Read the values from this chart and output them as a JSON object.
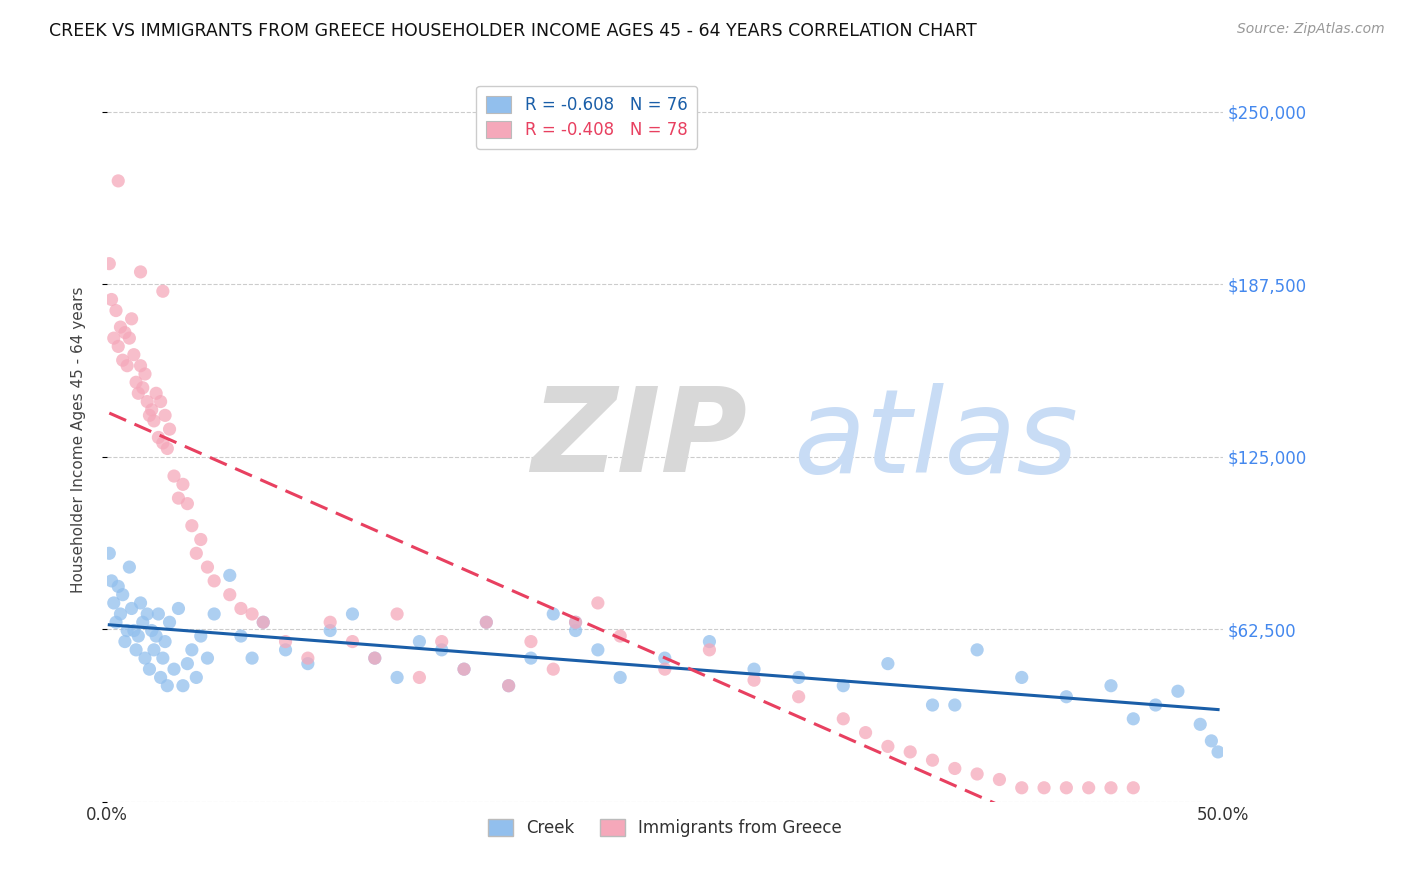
{
  "title": "CREEK VS IMMIGRANTS FROM GREECE HOUSEHOLDER INCOME AGES 45 - 64 YEARS CORRELATION CHART",
  "source": "Source: ZipAtlas.com",
  "ylabel": "Householder Income Ages 45 - 64 years",
  "xlim": [
    0.0,
    0.5
  ],
  "ylim": [
    0,
    262500
  ],
  "yticks": [
    0,
    62500,
    125000,
    187500,
    250000
  ],
  "ytick_labels": [
    "",
    "$62,500",
    "$125,000",
    "$187,500",
    "$250,000"
  ],
  "xticks": [
    0.0,
    0.05,
    0.1,
    0.15,
    0.2,
    0.25,
    0.3,
    0.35,
    0.4,
    0.45,
    0.5
  ],
  "legend_creek": "Creek",
  "legend_greece": "Immigrants from Greece",
  "creek_R": "-0.608",
  "creek_N": "76",
  "greece_R": "-0.408",
  "greece_N": "78",
  "creek_color": "#92BFED",
  "greece_color": "#F5A8BA",
  "creek_line_color": "#1A5EA8",
  "greece_line_color": "#E84060",
  "watermark_zip": "ZIP",
  "watermark_atlas": "atlas",
  "background_color": "#ffffff",
  "grid_color": "#cccccc",
  "creek_x": [
    0.001,
    0.002,
    0.003,
    0.004,
    0.005,
    0.006,
    0.007,
    0.008,
    0.009,
    0.01,
    0.011,
    0.012,
    0.013,
    0.014,
    0.015,
    0.016,
    0.017,
    0.018,
    0.019,
    0.02,
    0.021,
    0.022,
    0.023,
    0.024,
    0.025,
    0.026,
    0.027,
    0.028,
    0.03,
    0.032,
    0.034,
    0.036,
    0.038,
    0.04,
    0.042,
    0.045,
    0.048,
    0.055,
    0.06,
    0.065,
    0.07,
    0.08,
    0.09,
    0.1,
    0.11,
    0.12,
    0.13,
    0.14,
    0.15,
    0.16,
    0.17,
    0.18,
    0.19,
    0.2,
    0.21,
    0.22,
    0.23,
    0.25,
    0.27,
    0.29,
    0.31,
    0.33,
    0.35,
    0.37,
    0.39,
    0.41,
    0.43,
    0.45,
    0.46,
    0.47,
    0.48,
    0.49,
    0.495,
    0.498,
    0.21,
    0.38
  ],
  "creek_y": [
    90000,
    80000,
    72000,
    65000,
    78000,
    68000,
    75000,
    58000,
    62000,
    85000,
    70000,
    62000,
    55000,
    60000,
    72000,
    65000,
    52000,
    68000,
    48000,
    62000,
    55000,
    60000,
    68000,
    45000,
    52000,
    58000,
    42000,
    65000,
    48000,
    70000,
    42000,
    50000,
    55000,
    45000,
    60000,
    52000,
    68000,
    82000,
    60000,
    52000,
    65000,
    55000,
    50000,
    62000,
    68000,
    52000,
    45000,
    58000,
    55000,
    48000,
    65000,
    42000,
    52000,
    68000,
    62000,
    55000,
    45000,
    52000,
    58000,
    48000,
    45000,
    42000,
    50000,
    35000,
    55000,
    45000,
    38000,
    42000,
    30000,
    35000,
    40000,
    28000,
    22000,
    18000,
    65000,
    35000
  ],
  "greece_x": [
    0.001,
    0.002,
    0.003,
    0.004,
    0.005,
    0.006,
    0.007,
    0.008,
    0.009,
    0.01,
    0.011,
    0.012,
    0.013,
    0.014,
    0.015,
    0.016,
    0.017,
    0.018,
    0.019,
    0.02,
    0.021,
    0.022,
    0.023,
    0.024,
    0.025,
    0.026,
    0.027,
    0.028,
    0.03,
    0.032,
    0.034,
    0.036,
    0.038,
    0.04,
    0.042,
    0.045,
    0.048,
    0.055,
    0.06,
    0.065,
    0.07,
    0.08,
    0.09,
    0.1,
    0.11,
    0.12,
    0.13,
    0.14,
    0.15,
    0.16,
    0.17,
    0.18,
    0.19,
    0.2,
    0.21,
    0.22,
    0.23,
    0.25,
    0.27,
    0.29,
    0.31,
    0.33,
    0.34,
    0.35,
    0.36,
    0.37,
    0.38,
    0.39,
    0.4,
    0.41,
    0.42,
    0.43,
    0.44,
    0.45,
    0.46,
    0.005,
    0.015,
    0.025
  ],
  "greece_y": [
    195000,
    182000,
    168000,
    178000,
    165000,
    172000,
    160000,
    170000,
    158000,
    168000,
    175000,
    162000,
    152000,
    148000,
    158000,
    150000,
    155000,
    145000,
    140000,
    142000,
    138000,
    148000,
    132000,
    145000,
    130000,
    140000,
    128000,
    135000,
    118000,
    110000,
    115000,
    108000,
    100000,
    90000,
    95000,
    85000,
    80000,
    75000,
    70000,
    68000,
    65000,
    58000,
    52000,
    65000,
    58000,
    52000,
    68000,
    45000,
    58000,
    48000,
    65000,
    42000,
    58000,
    48000,
    65000,
    72000,
    60000,
    48000,
    55000,
    44000,
    38000,
    30000,
    25000,
    20000,
    18000,
    15000,
    12000,
    10000,
    8000,
    5000,
    5000,
    5000,
    5000,
    5000,
    5000,
    225000,
    192000,
    185000
  ]
}
